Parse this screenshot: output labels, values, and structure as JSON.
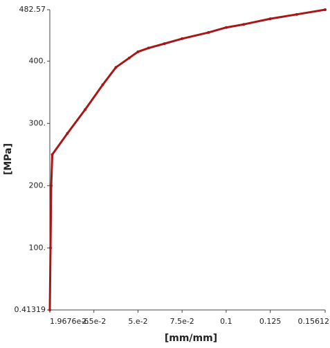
{
  "chart_data": {
    "type": "line",
    "x_label": "[mm/mm]",
    "y_label": "[MPa]",
    "xlim": [
      1.9676e-06,
      0.15612
    ],
    "ylim": [
      0.41319,
      482.57
    ],
    "xticks": [
      {
        "value": 1.9676e-06,
        "label": "1.9676e-6"
      },
      {
        "value": 0.025,
        "label": "2.5e-2"
      },
      {
        "value": 0.05,
        "label": "5.e-2"
      },
      {
        "value": 0.075,
        "label": "7.5e-2"
      },
      0.1,
      0.125,
      0.15612
    ],
    "yticks": [
      0.41319,
      {
        "value": 100,
        "label": "100."
      },
      {
        "value": 200,
        "label": "200."
      },
      {
        "value": 300,
        "label": "300."
      },
      {
        "value": 400,
        "label": "400."
      },
      482.57
    ],
    "series": [
      {
        "color": "#a81616",
        "x": [
          1.9676e-06,
          0.0004,
          0.0008,
          0.0014,
          0.01,
          0.02,
          0.03,
          0.0375,
          0.045,
          0.05,
          0.056,
          0.065,
          0.075,
          0.09,
          0.1,
          0.11,
          0.125,
          0.14,
          0.15612
        ],
        "values": [
          0.41319,
          100,
          200,
          250,
          284,
          322,
          362,
          390,
          405,
          415,
          421,
          428,
          436,
          446,
          454,
          459,
          468,
          475,
          482.57
        ]
      }
    ]
  }
}
